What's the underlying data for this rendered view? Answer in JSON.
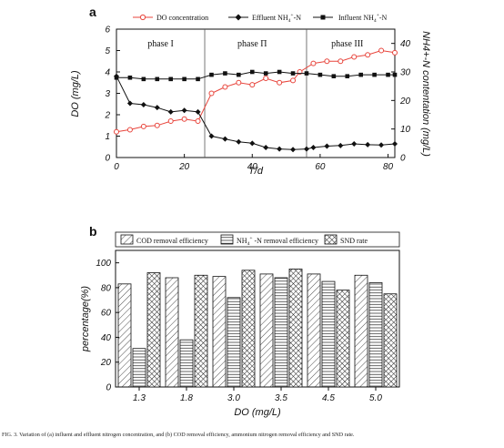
{
  "caption": "FIG. 3. Variation of (a) influent and effluent nitrogen concentration, and (b) COD removal efficiency, ammonium nitrogen removal efficiency and SND rate.",
  "chart_data": [
    {
      "panel": "a",
      "type": "line",
      "xlabel": "T/d",
      "ylabel": "DO (mg/L)",
      "y2label": "NH4+-N contentation (mg/L)",
      "xlim": [
        0,
        82
      ],
      "ylim": [
        0,
        6
      ],
      "y2lim": [
        0,
        45
      ],
      "xticks": [
        0,
        20,
        40,
        60,
        80
      ],
      "yticks": [
        0,
        1,
        2,
        3,
        4,
        5,
        6
      ],
      "y2ticks": [
        0,
        10,
        20,
        30,
        40
      ],
      "phases": [
        {
          "label": "phase I",
          "x_center": 13
        },
        {
          "label": "phase Π",
          "x_center": 40
        },
        {
          "label": "phase III",
          "x_center": 68
        }
      ],
      "phase_boundaries": [
        26,
        56
      ],
      "series": [
        {
          "name": "DO concentration",
          "axis": "left",
          "color": "#e8453c",
          "marker": "open-circle",
          "x": [
            0,
            4,
            8,
            12,
            16,
            20,
            24,
            28,
            32,
            36,
            40,
            44,
            48,
            52,
            54,
            58,
            62,
            66,
            70,
            74,
            78,
            82
          ],
          "y": [
            1.2,
            1.3,
            1.45,
            1.5,
            1.7,
            1.8,
            1.7,
            3.0,
            3.3,
            3.5,
            3.4,
            3.7,
            3.5,
            3.6,
            4.0,
            4.4,
            4.5,
            4.5,
            4.7,
            4.8,
            5.0,
            4.9
          ]
        },
        {
          "name": "Effluent NH4+-N",
          "axis": "right",
          "color": "#111111",
          "marker": "filled-diamond",
          "x": [
            0,
            4,
            8,
            12,
            16,
            20,
            24,
            28,
            32,
            36,
            40,
            44,
            48,
            52,
            56,
            58,
            62,
            66,
            70,
            74,
            78,
            82
          ],
          "y": [
            28.5,
            19,
            18.5,
            17.5,
            16,
            16.5,
            16,
            7.5,
            6.5,
            5.5,
            5,
            3.5,
            3,
            2.8,
            3,
            3.5,
            4,
            4.2,
            4.8,
            4.5,
            4.4,
            4.8
          ]
        },
        {
          "name": "Influent NH4+-N",
          "axis": "right",
          "color": "#111111",
          "marker": "filled-square",
          "x": [
            0,
            4,
            8,
            12,
            16,
            20,
            24,
            28,
            32,
            36,
            40,
            44,
            48,
            52,
            56,
            60,
            64,
            68,
            72,
            76,
            80,
            82
          ],
          "y": [
            28,
            28,
            27.5,
            27.5,
            27.5,
            27.5,
            27.5,
            29,
            29.5,
            29,
            30,
            29.5,
            30,
            29.5,
            29.5,
            29,
            28.5,
            28.5,
            29,
            29,
            29,
            29
          ]
        }
      ],
      "legend": {
        "position": "top",
        "entries": [
          "DO concentration",
          "Effluent NH",
          "Influent NH"
        ],
        "sub": "4",
        "sup": "+",
        "suffix": "-N"
      }
    },
    {
      "panel": "b",
      "type": "bar",
      "xlabel": "DO (mg/L)",
      "ylabel": "percentage(%)",
      "ylim": [
        0,
        110
      ],
      "yticks": [
        0,
        20,
        40,
        60,
        80,
        100
      ],
      "categories": [
        "1.3",
        "1.8",
        "3.0",
        "3.5",
        "4.5",
        "5.0"
      ],
      "series": [
        {
          "name": "COD removal efficiency",
          "pattern": "diagonal",
          "values": [
            83,
            88,
            89,
            91,
            91,
            90
          ]
        },
        {
          "name": "NH4+-N removal efficiency",
          "pattern": "horizontal",
          "values": [
            31,
            38,
            72,
            88,
            85,
            84
          ]
        },
        {
          "name": "SND rate",
          "pattern": "crosshatch",
          "values": [
            92,
            90,
            94,
            95,
            78,
            75
          ]
        }
      ],
      "legend": {
        "position": "top",
        "entries": [
          "COD removal efficiency",
          "NH",
          "SND rate"
        ],
        "sub": "4",
        "sup": "+",
        "suffix": " -N removal efficiency"
      }
    }
  ]
}
